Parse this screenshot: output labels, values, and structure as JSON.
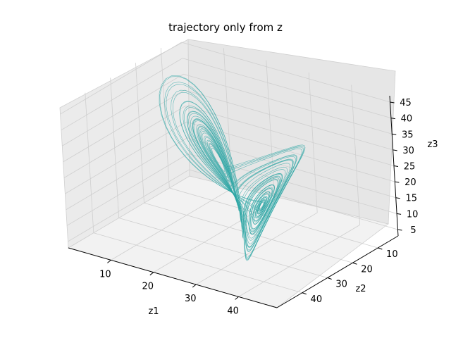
{
  "chart_data": {
    "type": "line",
    "projection": "3d",
    "title": "trajectory only from z",
    "xlabel": "z1",
    "ylabel": "z2",
    "zlabel": "z3",
    "xlim": [
      0,
      49
    ],
    "ylim": [
      2,
      50
    ],
    "zlim": [
      3,
      47
    ],
    "x_ticks": [
      10,
      20,
      30,
      40
    ],
    "y_ticks": [
      10,
      20,
      30,
      40
    ],
    "z_ticks": [
      5,
      10,
      15,
      20,
      25,
      30,
      35,
      40,
      45
    ],
    "grid": true,
    "series": [
      {
        "color": "#2ca6a4",
        "approx_bounds": {
          "z1": [
            5,
            48
          ],
          "z2": [
            3,
            48
          ],
          "z3": [
            3,
            44
          ]
        }
      }
    ]
  }
}
